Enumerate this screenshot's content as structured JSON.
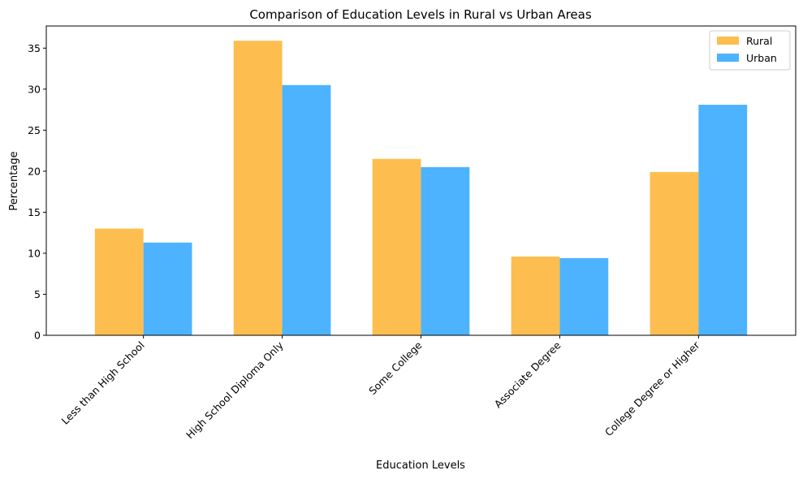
{
  "chart_data": {
    "type": "bar",
    "title": "Comparison of Education Levels in Rural vs Urban Areas",
    "xlabel": "Education Levels",
    "ylabel": "Percentage",
    "categories": [
      "Less than High School",
      "High School Diploma Only",
      "Some College",
      "Associate Degree",
      "College Degree or Higher"
    ],
    "series": [
      {
        "name": "Rural",
        "color": "#FDBE4F",
        "values": [
          13.0,
          35.9,
          21.5,
          9.6,
          19.9
        ]
      },
      {
        "name": "Urban",
        "color": "#4DB3FF",
        "values": [
          11.3,
          30.5,
          20.5,
          9.4,
          28.1
        ]
      }
    ],
    "ylim": [
      0,
      37.7
    ],
    "yticks": [
      0,
      5,
      10,
      15,
      20,
      25,
      30,
      35
    ],
    "grid": false,
    "legend_position": "top-right"
  }
}
